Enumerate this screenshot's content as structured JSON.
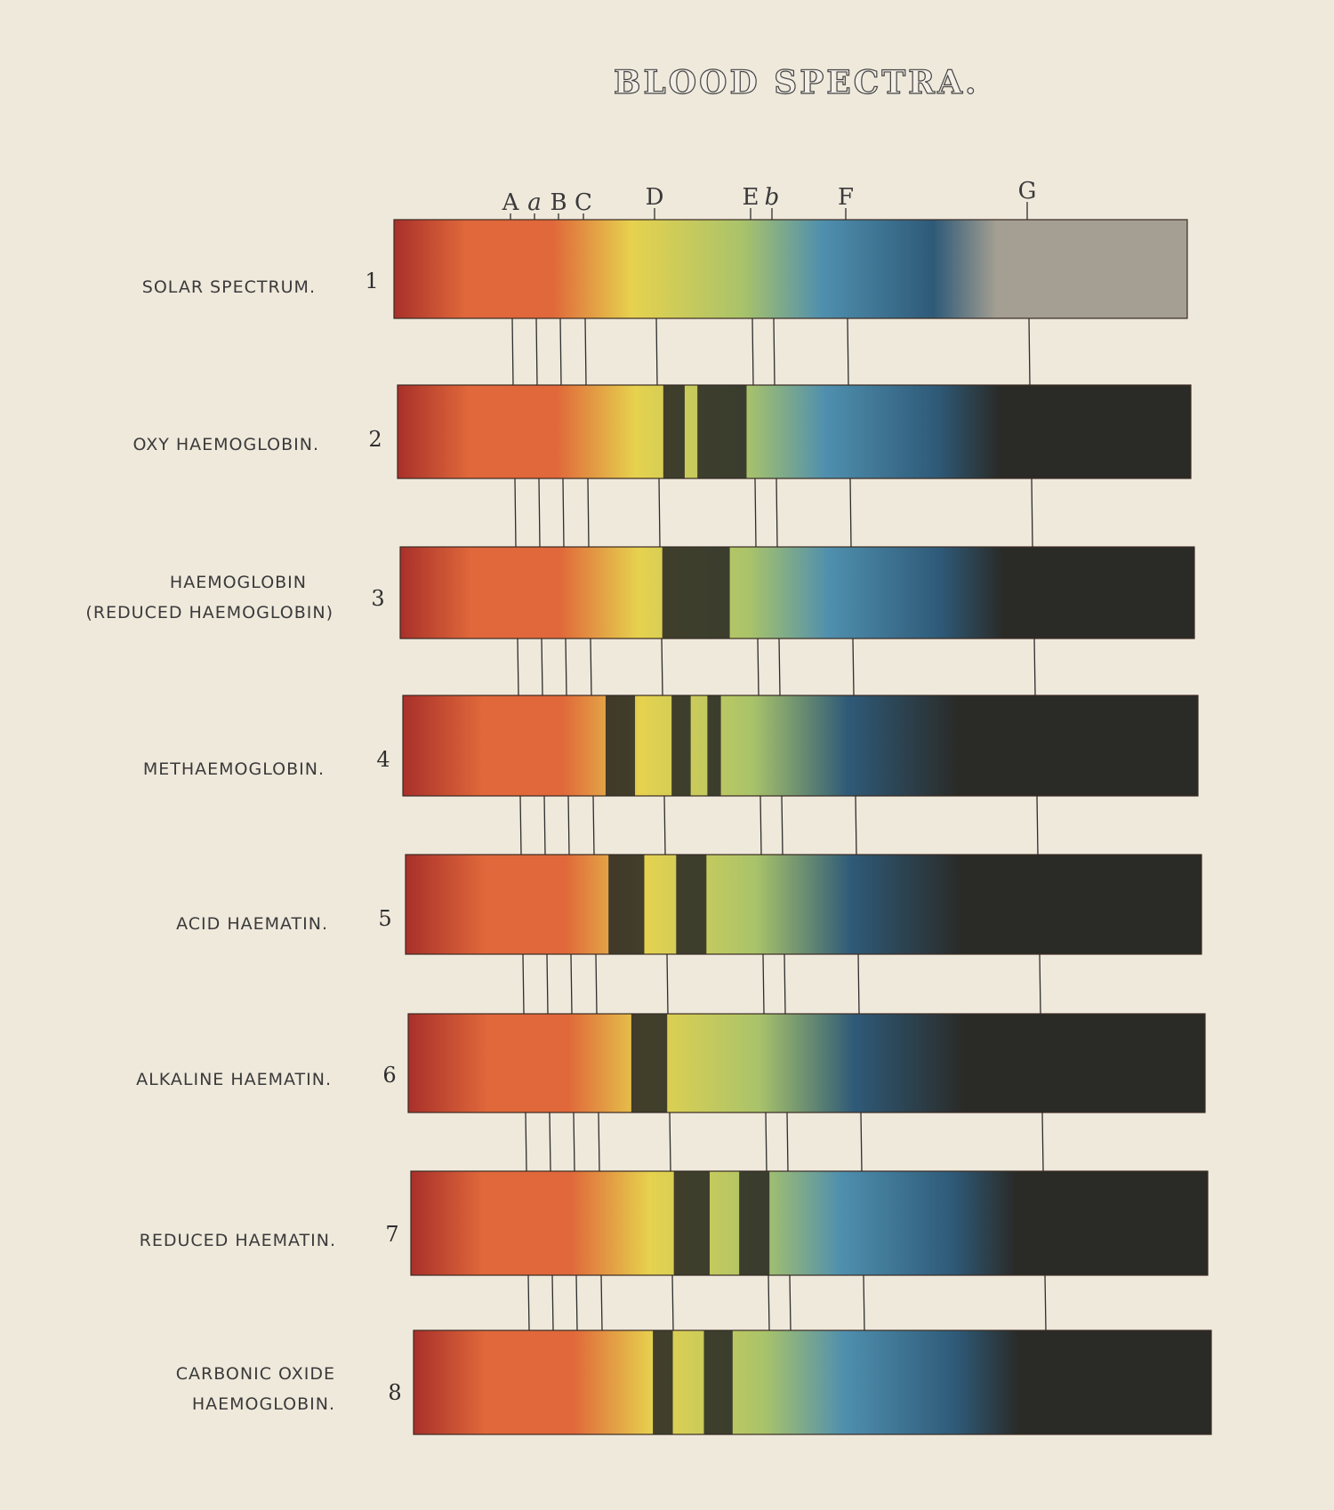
{
  "title": "BLOOD SPECTRA.",
  "line_markers": [
    {
      "label": "A",
      "italic": false
    },
    {
      "label": "a",
      "italic": true
    },
    {
      "label": "B",
      "italic": false
    },
    {
      "label": "C",
      "italic": false
    },
    {
      "label": "D",
      "italic": false
    },
    {
      "label": "E",
      "italic": false
    },
    {
      "label": "b",
      "italic": true
    },
    {
      "label": "F",
      "italic": false
    },
    {
      "label": "G",
      "italic": false
    }
  ],
  "colors": {
    "background": "#efe9dc",
    "red": "#a8302a",
    "orange": "#e0683a",
    "yellow": "#e6d24e",
    "green": "#a9c36a",
    "blue": "#4f8fae",
    "dark_blue": "#2e5a78",
    "grey": "#a49f92",
    "black": "#2a2a26"
  },
  "spectra": [
    {
      "number": "1",
      "label": [
        "SOLAR SPECTRUM."
      ]
    },
    {
      "number": "2",
      "label": [
        "OXY HAEMOGLOBIN."
      ]
    },
    {
      "number": "3",
      "label": [
        "HAEMOGLOBIN",
        "(REDUCED HAEMOGLOBIN)"
      ]
    },
    {
      "number": "4",
      "label": [
        "METHAEMOGLOBIN."
      ]
    },
    {
      "number": "5",
      "label": [
        "ACID HAEMATIN."
      ]
    },
    {
      "number": "6",
      "label": [
        "ALKALINE HAEMATIN."
      ]
    },
    {
      "number": "7",
      "label": [
        "REDUCED HAEMATIN."
      ]
    },
    {
      "number": "8",
      "label": [
        "CARBONIC OXIDE",
        "HAEMOGLOBIN."
      ]
    }
  ]
}
